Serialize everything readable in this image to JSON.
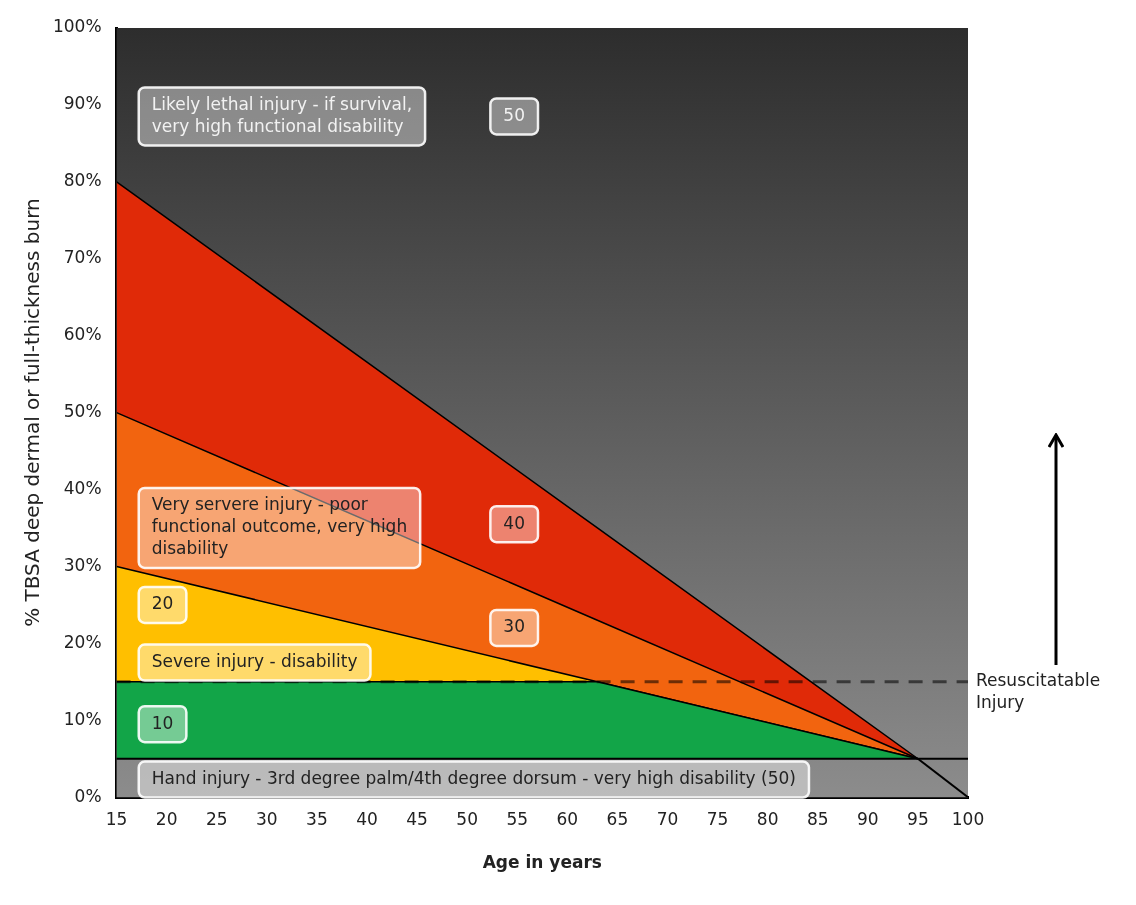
{
  "chart_data": {
    "type": "area",
    "xlabel": "Age in years",
    "ylabel": "% TBSA deep dermal or full-thickness burn",
    "x": [
      15,
      63,
      95
    ],
    "series": [
      {
        "color": "#12a548",
        "values": [
          15,
          15,
          5
        ]
      },
      {
        "color": "#ffbf00",
        "values": [
          30,
          15,
          5
        ]
      },
      {
        "color": "#f2640f",
        "values": [
          50,
          23,
          5
        ]
      },
      {
        "color": "#e02a08",
        "values": [
          80,
          35,
          5
        ]
      },
      {
        "type": "line",
        "color": "#000000",
        "x": [
          95,
          100
        ],
        "values": [
          5,
          0
        ]
      }
    ],
    "xlim": [
      15,
      100
    ],
    "xticks": [
      15,
      20,
      25,
      30,
      35,
      40,
      45,
      50,
      55,
      60,
      65,
      70,
      75,
      80,
      85,
      90,
      95,
      100
    ],
    "ylim": [
      0,
      100
    ],
    "yticks": [
      {
        "value": 0,
        "label": "0%"
      },
      {
        "value": 10,
        "label": "10%"
      },
      {
        "value": 20,
        "label": "20%"
      },
      {
        "value": 30,
        "label": "30%"
      },
      {
        "value": 40,
        "label": "40%"
      },
      {
        "value": 50,
        "label": "50%"
      },
      {
        "value": 60,
        "label": "60%"
      },
      {
        "value": 70,
        "label": "70%"
      },
      {
        "value": 80,
        "label": "80%"
      },
      {
        "value": 90,
        "label": "90%"
      },
      {
        "value": 100,
        "label": "100%"
      }
    ],
    "grid": false,
    "legend": false,
    "ref_lines": [
      {
        "axis": "y",
        "value": 5,
        "color": "#000000",
        "line_style": "solid"
      },
      {
        "axis": "y",
        "value": 15,
        "label": "Resuscitatable Injury",
        "color": "#000000",
        "line_style": "dashed"
      }
    ],
    "annotations": [
      "Likely lethal injury - if survival, very high functional disability",
      "50",
      "Very servere injury - poor functional outcome, very high disability",
      "40",
      "30",
      "20",
      "Severe injury - disability",
      "10",
      "Hand injury - 3rd degree palm/4th degree dorsum - very high disability (50)"
    ]
  }
}
